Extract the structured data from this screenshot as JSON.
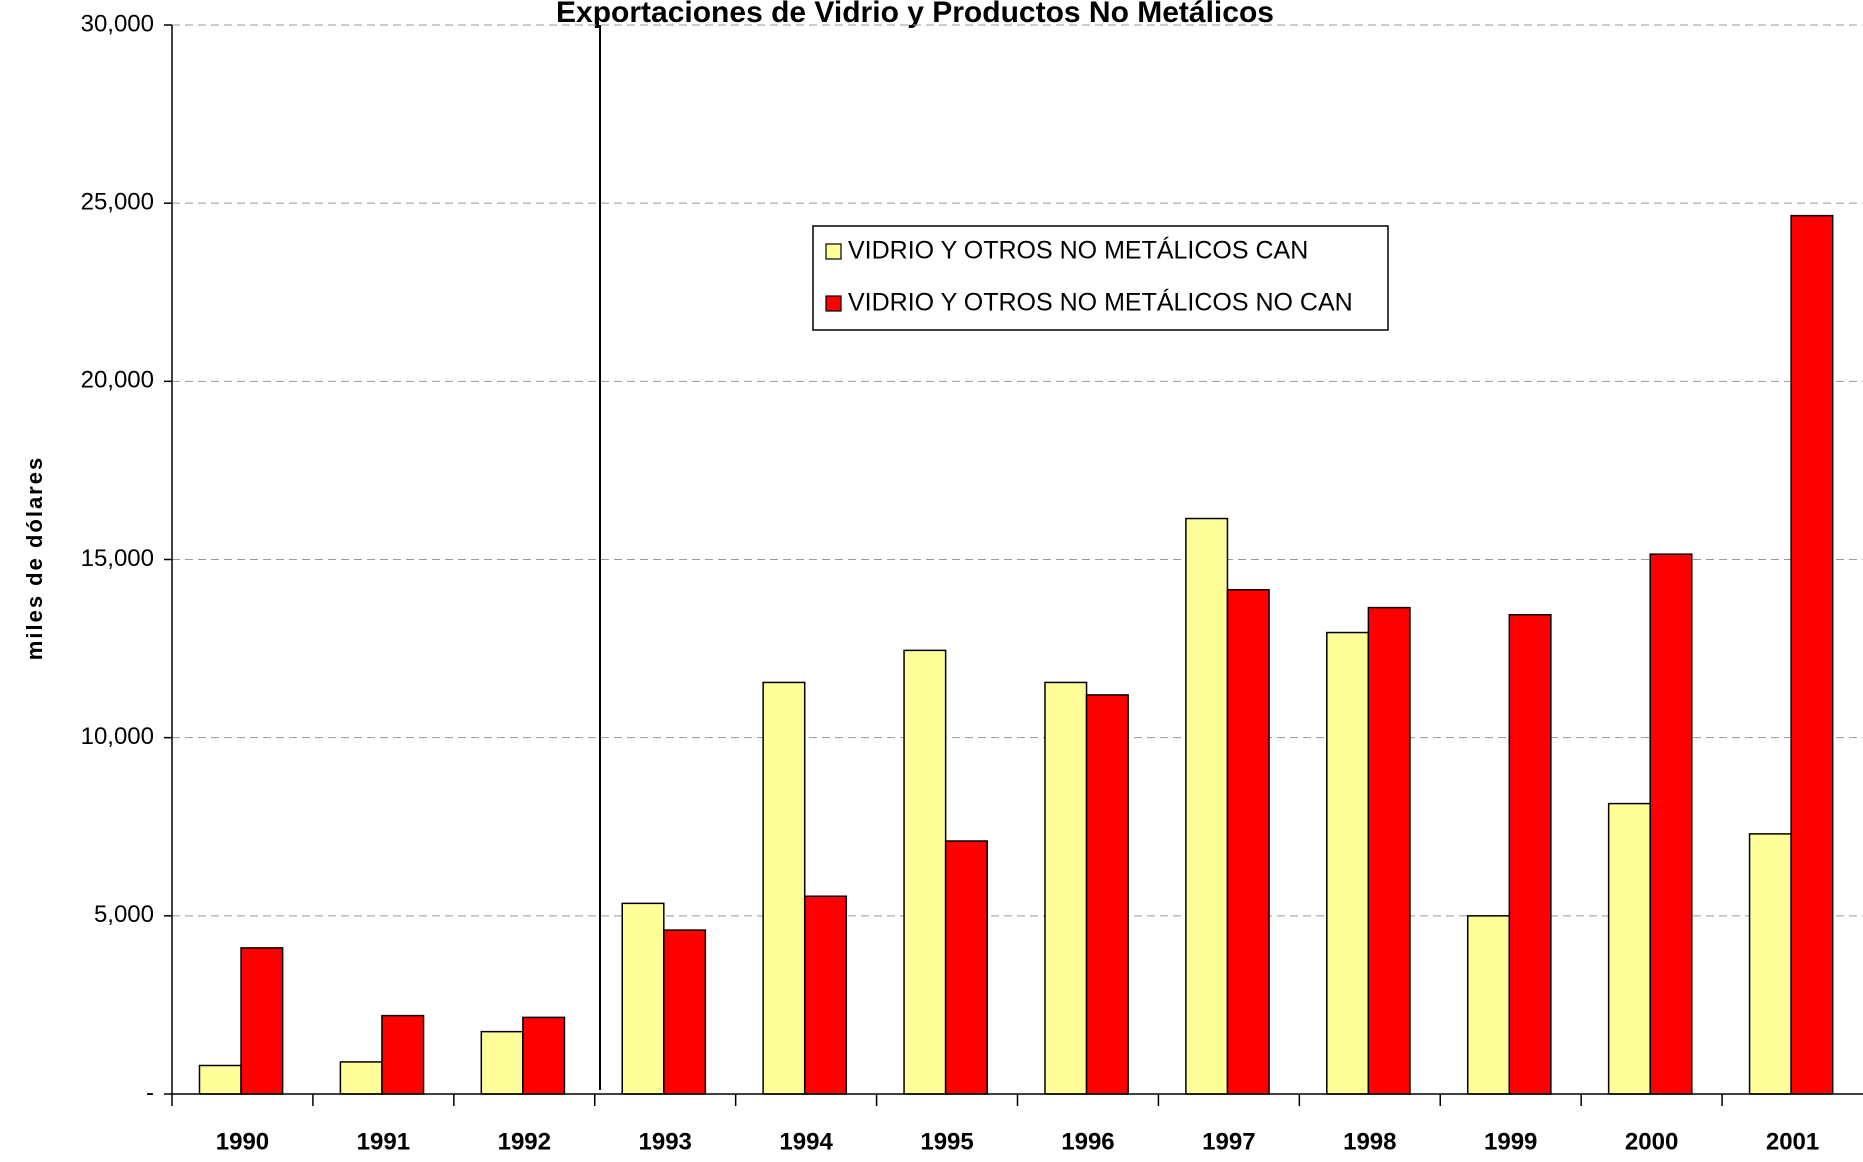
{
  "chart_data": {
    "type": "bar",
    "title": "Exportaciones de Vidrio y Productos No Metálicos",
    "y_label": "miles de dólares",
    "categories": [
      "1990",
      "1991",
      "1992",
      "1993",
      "1994",
      "1995",
      "1996",
      "1997",
      "1998",
      "1999",
      "2000",
      "2001"
    ],
    "series": [
      {
        "name": "VIDRIO Y OTROS  NO METÁLICOS CAN",
        "color": "#ffff99",
        "values": [
          800,
          900,
          1750,
          5350,
          11550,
          12450,
          11550,
          16150,
          12950,
          5000,
          8150,
          7300
        ]
      },
      {
        "name": "VIDRIO Y OTROS  NO METÁLICOS NO CAN",
        "color": "#ff0000",
        "values": [
          4100,
          2200,
          2150,
          4600,
          5550,
          7100,
          11200,
          14150,
          13650,
          13450,
          15150,
          24650
        ]
      }
    ],
    "ylim": [
      0,
      30000
    ],
    "yticks": [
      {
        "value": 0,
        "label": "-"
      },
      {
        "value": 5000,
        "label": "5,000"
      },
      {
        "value": 10000,
        "label": "10,000"
      },
      {
        "value": 15000,
        "label": "15,000"
      },
      {
        "value": 20000,
        "label": "20,000"
      },
      {
        "value": 25000,
        "label": "25,000"
      },
      {
        "value": 30000,
        "label": "30,000"
      }
    ],
    "grid": true
  }
}
